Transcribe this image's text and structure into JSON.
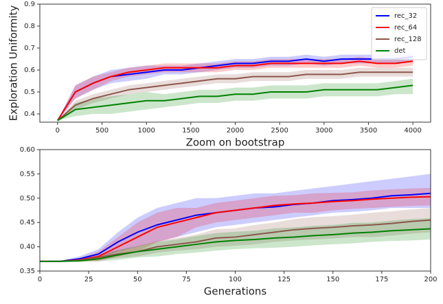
{
  "chart_data": [
    {
      "type": "line",
      "ylabel": "Exploration Uniformity",
      "x": [
        0,
        200,
        400,
        600,
        800,
        1000,
        1200,
        1400,
        1600,
        1800,
        2000,
        2200,
        2400,
        2600,
        2800,
        3000,
        3200,
        3400,
        3600,
        3800,
        4000
      ],
      "xlim": [
        -200,
        4200
      ],
      "xticks": [
        0,
        500,
        1000,
        1500,
        2000,
        2500,
        3000,
        3500,
        4000
      ],
      "ylim": [
        0.3625,
        0.9
      ],
      "yticks": [
        0.4,
        0.5,
        0.6,
        0.7,
        0.8,
        0.9
      ],
      "legend": "upper right",
      "series": [
        {
          "name": "rec_32",
          "color": "#0000ff",
          "values": [
            0.37,
            0.5,
            0.54,
            0.57,
            0.58,
            0.59,
            0.6,
            0.6,
            0.61,
            0.62,
            0.63,
            0.63,
            0.64,
            0.64,
            0.65,
            0.64,
            0.65,
            0.65,
            0.65,
            0.65,
            0.66
          ],
          "lower": [
            0.37,
            0.47,
            0.51,
            0.54,
            0.55,
            0.56,
            0.58,
            0.58,
            0.59,
            0.6,
            0.61,
            0.61,
            0.62,
            0.62,
            0.63,
            0.62,
            0.63,
            0.63,
            0.63,
            0.63,
            0.64
          ],
          "upper": [
            0.37,
            0.53,
            0.57,
            0.6,
            0.61,
            0.62,
            0.62,
            0.62,
            0.63,
            0.64,
            0.65,
            0.65,
            0.66,
            0.66,
            0.67,
            0.66,
            0.67,
            0.67,
            0.67,
            0.67,
            0.68
          ]
        },
        {
          "name": "rec_64",
          "color": "#ff0000",
          "values": [
            0.37,
            0.5,
            0.54,
            0.57,
            0.59,
            0.6,
            0.61,
            0.61,
            0.61,
            0.61,
            0.62,
            0.62,
            0.63,
            0.63,
            0.63,
            0.63,
            0.63,
            0.64,
            0.63,
            0.63,
            0.64
          ],
          "lower": [
            0.37,
            0.47,
            0.51,
            0.55,
            0.57,
            0.58,
            0.59,
            0.59,
            0.59,
            0.59,
            0.6,
            0.6,
            0.61,
            0.61,
            0.61,
            0.61,
            0.61,
            0.62,
            0.61,
            0.61,
            0.62
          ],
          "upper": [
            0.37,
            0.53,
            0.57,
            0.59,
            0.61,
            0.62,
            0.63,
            0.63,
            0.63,
            0.63,
            0.64,
            0.64,
            0.65,
            0.65,
            0.65,
            0.65,
            0.65,
            0.66,
            0.65,
            0.65,
            0.66
          ]
        },
        {
          "name": "rec_128",
          "color": "#8c564b",
          "values": [
            0.37,
            0.44,
            0.47,
            0.49,
            0.51,
            0.52,
            0.53,
            0.54,
            0.55,
            0.56,
            0.56,
            0.57,
            0.57,
            0.57,
            0.58,
            0.58,
            0.58,
            0.59,
            0.59,
            0.59,
            0.59
          ],
          "lower": [
            0.37,
            0.42,
            0.45,
            0.47,
            0.49,
            0.5,
            0.51,
            0.52,
            0.53,
            0.54,
            0.54,
            0.55,
            0.55,
            0.55,
            0.56,
            0.56,
            0.56,
            0.57,
            0.57,
            0.57,
            0.57
          ],
          "upper": [
            0.37,
            0.46,
            0.49,
            0.51,
            0.53,
            0.54,
            0.55,
            0.56,
            0.57,
            0.58,
            0.58,
            0.59,
            0.59,
            0.59,
            0.6,
            0.6,
            0.6,
            0.61,
            0.61,
            0.61,
            0.61
          ]
        },
        {
          "name": "det",
          "color": "#008000",
          "values": [
            0.37,
            0.42,
            0.43,
            0.44,
            0.45,
            0.46,
            0.46,
            0.47,
            0.48,
            0.48,
            0.49,
            0.49,
            0.5,
            0.5,
            0.5,
            0.51,
            0.51,
            0.51,
            0.51,
            0.52,
            0.53
          ],
          "lower": [
            0.37,
            0.39,
            0.4,
            0.4,
            0.41,
            0.42,
            0.43,
            0.44,
            0.45,
            0.45,
            0.46,
            0.46,
            0.47,
            0.47,
            0.47,
            0.48,
            0.48,
            0.48,
            0.48,
            0.49,
            0.49
          ],
          "upper": [
            0.37,
            0.45,
            0.47,
            0.48,
            0.49,
            0.5,
            0.49,
            0.5,
            0.51,
            0.51,
            0.52,
            0.52,
            0.53,
            0.53,
            0.53,
            0.54,
            0.54,
            0.54,
            0.54,
            0.55,
            0.56
          ]
        }
      ]
    },
    {
      "type": "line",
      "title": "Zoom on bootstrap",
      "xlabel": "Generations",
      "x": [
        0,
        10,
        20,
        30,
        40,
        50,
        60,
        70,
        80,
        90,
        100,
        110,
        120,
        130,
        140,
        150,
        160,
        170,
        180,
        190,
        200
      ],
      "xlim": [
        0,
        200
      ],
      "xticks": [
        0,
        25,
        50,
        75,
        100,
        125,
        150,
        175,
        200
      ],
      "ylim": [
        0.35,
        0.6
      ],
      "yticks": [
        0.35,
        {
          "value": 0.4,
          "label": "0.40"
        },
        0.45,
        {
          "value": 0.5,
          "label": "0.50"
        },
        0.55,
        {
          "value": 0.6,
          "label": "0.60"
        }
      ],
      "series": [
        {
          "color": "#0000ff",
          "values": [
            0.37,
            0.37,
            0.375,
            0.385,
            0.41,
            0.43,
            0.445,
            0.455,
            0.465,
            0.47,
            0.475,
            0.48,
            0.482,
            0.487,
            0.49,
            0.495,
            0.497,
            0.5,
            0.505,
            0.507,
            0.51
          ],
          "lower": [
            0.37,
            0.37,
            0.37,
            0.375,
            0.39,
            0.4,
            0.41,
            0.42,
            0.43,
            0.44,
            0.445,
            0.45,
            0.455,
            0.46,
            0.465,
            0.47,
            0.472,
            0.475,
            0.48,
            0.48,
            0.48
          ],
          "upper": [
            0.37,
            0.37,
            0.38,
            0.395,
            0.43,
            0.46,
            0.48,
            0.49,
            0.5,
            0.5,
            0.505,
            0.51,
            0.51,
            0.515,
            0.52,
            0.525,
            0.53,
            0.535,
            0.54,
            0.545,
            0.55
          ]
        },
        {
          "color": "#ff0000",
          "values": [
            0.37,
            0.37,
            0.373,
            0.38,
            0.4,
            0.42,
            0.44,
            0.45,
            0.46,
            0.47,
            0.475,
            0.48,
            0.485,
            0.488,
            0.49,
            0.493,
            0.495,
            0.498,
            0.5,
            0.502,
            0.503
          ],
          "lower": [
            0.37,
            0.37,
            0.37,
            0.37,
            0.38,
            0.39,
            0.41,
            0.42,
            0.44,
            0.45,
            0.455,
            0.46,
            0.465,
            0.47,
            0.47,
            0.475,
            0.478,
            0.48,
            0.482,
            0.484,
            0.485
          ],
          "upper": [
            0.37,
            0.37,
            0.376,
            0.39,
            0.42,
            0.45,
            0.47,
            0.48,
            0.48,
            0.49,
            0.495,
            0.5,
            0.505,
            0.506,
            0.51,
            0.511,
            0.512,
            0.516,
            0.518,
            0.52,
            0.521
          ]
        },
        {
          "color": "#8c564b",
          "values": [
            0.37,
            0.37,
            0.372,
            0.378,
            0.385,
            0.39,
            0.4,
            0.405,
            0.41,
            0.418,
            0.42,
            0.425,
            0.43,
            0.435,
            0.438,
            0.44,
            0.443,
            0.445,
            0.448,
            0.452,
            0.455
          ],
          "lower": [
            0.37,
            0.37,
            0.37,
            0.372,
            0.377,
            0.38,
            0.388,
            0.392,
            0.395,
            0.4,
            0.402,
            0.405,
            0.41,
            0.413,
            0.415,
            0.417,
            0.42,
            0.42,
            0.423,
            0.427,
            0.43
          ],
          "upper": [
            0.37,
            0.37,
            0.374,
            0.384,
            0.393,
            0.4,
            0.412,
            0.418,
            0.425,
            0.436,
            0.438,
            0.445,
            0.45,
            0.457,
            0.461,
            0.463,
            0.466,
            0.47,
            0.473,
            0.477,
            0.48
          ]
        },
        {
          "color": "#008000",
          "values": [
            0.37,
            0.37,
            0.371,
            0.375,
            0.383,
            0.39,
            0.395,
            0.4,
            0.405,
            0.41,
            0.413,
            0.415,
            0.418,
            0.42,
            0.423,
            0.425,
            0.428,
            0.43,
            0.433,
            0.435,
            0.437
          ],
          "lower": [
            0.37,
            0.37,
            0.369,
            0.37,
            0.373,
            0.378,
            0.38,
            0.385,
            0.388,
            0.392,
            0.395,
            0.397,
            0.398,
            0.4,
            0.403,
            0.405,
            0.407,
            0.41,
            0.412,
            0.413,
            0.415
          ],
          "upper": [
            0.37,
            0.37,
            0.373,
            0.38,
            0.393,
            0.402,
            0.41,
            0.415,
            0.422,
            0.428,
            0.431,
            0.433,
            0.438,
            0.44,
            0.443,
            0.445,
            0.449,
            0.45,
            0.454,
            0.457,
            0.459
          ]
        }
      ]
    }
  ]
}
